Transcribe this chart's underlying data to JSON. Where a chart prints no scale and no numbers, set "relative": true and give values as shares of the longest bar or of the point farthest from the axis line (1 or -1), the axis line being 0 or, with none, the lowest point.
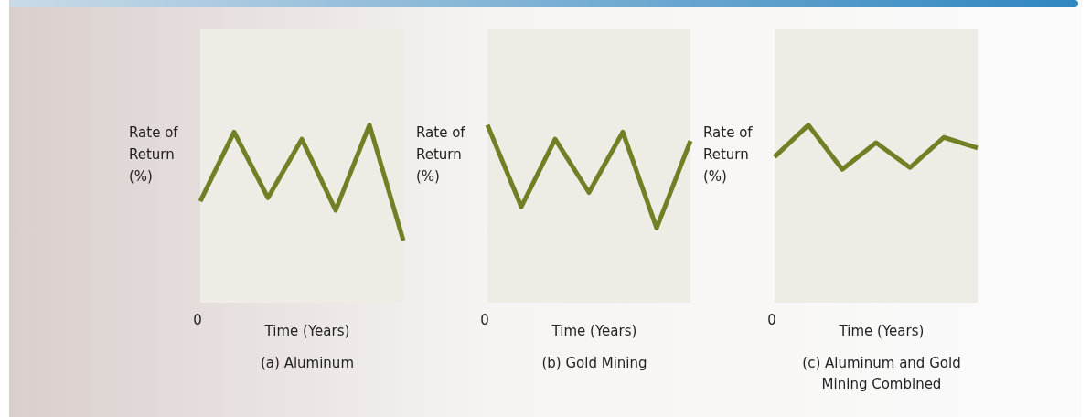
{
  "chart_data": [
    {
      "type": "line",
      "title": "(a) Aluminum",
      "xlabel": "Time (Years)",
      "ylabel": "Rate of Return (%)",
      "relative": true,
      "categories": [
        null,
        null,
        null,
        null,
        null,
        null,
        null
      ],
      "annotations": [
        "0"
      ],
      "series": [
        {
          "color": "#718024",
          "values": [
            0.57,
            0.96,
            0.59,
            0.92,
            0.52,
            1,
            0.35
          ]
        }
      ]
    },
    {
      "type": "line",
      "title": "(b) Gold Mining",
      "xlabel": "Time (Years)",
      "ylabel": "Rate of Return (%)",
      "relative": true,
      "categories": [
        null,
        null,
        null,
        null,
        null,
        null,
        null
      ],
      "annotations": [
        "0"
      ],
      "series": [
        {
          "color": "#718024",
          "values": [
            1,
            0.54,
            0.92,
            0.62,
            0.96,
            0.42,
            0.91
          ]
        }
      ]
    },
    {
      "type": "line",
      "title": "(c) Aluminum and Gold Mining Combined",
      "xlabel": "Time (Years)",
      "ylabel": "Rate of Return (%)",
      "relative": true,
      "categories": [
        null,
        null,
        null,
        null,
        null,
        null,
        null
      ],
      "annotations": [
        "0"
      ],
      "series": [
        {
          "color": "#718024",
          "values": [
            0.82,
            1,
            0.75,
            0.9,
            0.76,
            0.93,
            0.87
          ]
        }
      ]
    }
  ]
}
